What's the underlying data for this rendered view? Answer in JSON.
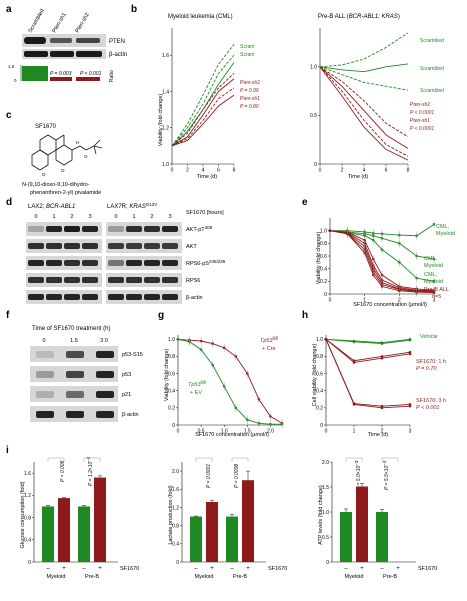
{
  "panel_letters": [
    "a",
    "b",
    "c",
    "d",
    "e",
    "f",
    "g",
    "h",
    "i"
  ],
  "colors": {
    "green": "#1f8a23",
    "red": "#8e1b1b",
    "dark": "#222222",
    "band": "#1a1a1a",
    "blot_bg": "#d7d7d7"
  },
  "panel_a": {
    "lanes": [
      "Scrambled",
      "Pten-sh1",
      "Pten-sh2"
    ],
    "proteins": [
      "PTEN",
      "β-actin"
    ],
    "ratio_label": "Ratio",
    "ratio_ticks": [
      "0",
      "1.0"
    ],
    "p1": "P = 0.003",
    "p2": "P < 0.001",
    "chart_data": {
      "type": "bar",
      "categories": [
        "Scrambled",
        "Pten-sh1",
        "Pten-sh2"
      ],
      "values": [
        1.0,
        0.3,
        0.3
      ],
      "ylim": [
        0,
        1.0
      ]
    }
  },
  "panel_b": {
    "left": {
      "title": "Myeloid leukemia (CML)",
      "xlabel": "Time (d)",
      "ylabel": "Viability (fold change)",
      "labels": [
        "Scram",
        "Scram",
        "Pten-sh2",
        "P = 0.99",
        "Pten-sh1",
        "P = 0.80"
      ],
      "chart_data": {
        "type": "line",
        "x": [
          0,
          2,
          4,
          6,
          8
        ],
        "xticks": [
          "0",
          "2",
          "4",
          "6",
          "8"
        ],
        "yticks": [
          "1.0",
          "1.2",
          "1.4",
          "1.6"
        ],
        "ylim": [
          1.0,
          1.75
        ],
        "series": [
          {
            "name": "Scram",
            "color": "#1f8a23",
            "dash": true,
            "values": [
              1.1,
              1.22,
              1.38,
              1.55,
              1.66
            ]
          },
          {
            "name": "Scram",
            "color": "#1f8a23",
            "dash": true,
            "values": [
              1.1,
              1.2,
              1.33,
              1.5,
              1.6
            ]
          },
          {
            "name": "Scram",
            "color": "#1f8a23",
            "dash": false,
            "values": [
              1.1,
              1.18,
              1.3,
              1.44,
              1.56
            ]
          },
          {
            "name": "Pten-sh2",
            "color": "#8e1b1b",
            "dash": true,
            "values": [
              1.1,
              1.17,
              1.3,
              1.42,
              1.5
            ]
          },
          {
            "name": "Pten-sh2",
            "color": "#8e1b1b",
            "dash": false,
            "values": [
              1.1,
              1.15,
              1.27,
              1.4,
              1.47
            ]
          },
          {
            "name": "Pten-sh1",
            "color": "#8e1b1b",
            "dash": true,
            "values": [
              1.1,
              1.14,
              1.24,
              1.36,
              1.42
            ]
          },
          {
            "name": "Pten-sh1",
            "color": "#8e1b1b",
            "dash": false,
            "values": [
              1.1,
              1.13,
              1.22,
              1.32,
              1.38
            ]
          }
        ]
      }
    },
    "right": {
      "title_pre": "Pre-B ALL (",
      "title_genes": "BCR-ABL1; KRAS",
      "title_post": ")",
      "xlabel": "Time (d)",
      "labels": [
        "Scrambled",
        "Scrambled",
        "Scrambled",
        "Pten-sh2",
        "P < 0.0001",
        "Pten-sh1",
        "P < 0.0001"
      ],
      "chart_data": {
        "type": "line",
        "x": [
          0,
          2,
          4,
          6,
          8
        ],
        "xticks": [
          "0",
          "2",
          "4",
          "6",
          "8"
        ],
        "yticks": [
          "0",
          "0.5",
          "1.0"
        ],
        "ylim": [
          0,
          1.4
        ],
        "series": [
          {
            "name": "Scrambled",
            "color": "#1f8a23",
            "dash": true,
            "values": [
              1.0,
              1.02,
              1.08,
              1.2,
              1.35
            ]
          },
          {
            "name": "Scrambled",
            "color": "#1f8a23",
            "dash": false,
            "values": [
              1.0,
              0.97,
              0.95,
              1.0,
              1.03
            ]
          },
          {
            "name": "Scrambled",
            "color": "#1f8a23",
            "dash": true,
            "values": [
              1.0,
              0.92,
              0.84,
              0.8,
              0.76
            ]
          },
          {
            "name": "Pten-sh2",
            "color": "#8e1b1b",
            "dash": true,
            "values": [
              1.0,
              0.85,
              0.65,
              0.42,
              0.28
            ]
          },
          {
            "name": "Pten-sh2",
            "color": "#8e1b1b",
            "dash": false,
            "values": [
              1.0,
              0.8,
              0.55,
              0.3,
              0.16
            ]
          },
          {
            "name": "Pten-sh1",
            "color": "#8e1b1b",
            "dash": true,
            "values": [
              1.0,
              0.75,
              0.45,
              0.2,
              0.08
            ]
          },
          {
            "name": "Pten-sh1",
            "color": "#8e1b1b",
            "dash": false,
            "values": [
              1.0,
              0.7,
              0.38,
              0.15,
              0.04
            ]
          }
        ]
      }
    }
  },
  "panel_c": {
    "compound": "SF1670",
    "name_line1": "N-(9,10-dioxo-9,10-dihydro-",
    "name_line2": "phenanthren-2-yl) pivalamide"
  },
  "panel_d": {
    "cell1_name": "LAX2; ",
    "cell1_gene": "BCR-ABL1",
    "cell2_name": "LAX7R; ",
    "cell2_gene": "KRAS",
    "cell2_sup": "G12V",
    "treatment_label": "SF1670 [hours]",
    "time_labels": [
      "0",
      "1",
      "2",
      "3",
      "0",
      "1",
      "2",
      "3"
    ],
    "proteins": [
      {
        "name": "AKT-pT",
        "sup": "308"
      },
      {
        "name": "AKT",
        "sup": ""
      },
      {
        "name": "RPS6-pS",
        "sup": "235/236"
      },
      {
        "name": "RPS6",
        "sup": ""
      },
      {
        "name": "β-actin",
        "sup": ""
      }
    ]
  },
  "panel_e": {
    "xlabel": "SF1670 concentration (μmol/l)",
    "ylabel": "Viability (fold change)",
    "labels": [
      "CML,",
      "Myeloid",
      "CML,",
      "Myeloid",
      "CML,",
      "Myeloid",
      "Pre-B ALL",
      "n=5"
    ],
    "chart_data": {
      "type": "line",
      "x": [
        0,
        0.5,
        1,
        1.25,
        1.5,
        2,
        2.5,
        3
      ],
      "xticks": [
        "0",
        "1",
        "2",
        "3"
      ],
      "yticks": [
        "0",
        "0.2",
        "0.4",
        "0.6",
        "0.8",
        "1.0"
      ],
      "ylim": [
        0,
        1.2
      ],
      "series": [
        {
          "name": "CML, Myeloid",
          "color": "#1f8a23",
          "values": [
            1.0,
            1.0,
            0.98,
            0.96,
            0.95,
            0.93,
            0.92,
            1.1
          ]
        },
        {
          "name": "CML, Myeloid",
          "color": "#1f8a23",
          "values": [
            1.0,
            0.98,
            0.95,
            0.92,
            0.88,
            0.8,
            0.6,
            0.55
          ]
        },
        {
          "name": "CML, Myeloid",
          "color": "#1f8a23",
          "values": [
            1.0,
            0.97,
            0.92,
            0.85,
            0.7,
            0.5,
            0.25,
            0.2
          ]
        },
        {
          "name": "Pre-B ALL",
          "color": "#8e1b1b",
          "values": [
            1.0,
            0.98,
            0.85,
            0.55,
            0.3,
            0.12,
            0.08,
            0.06
          ]
        },
        {
          "name": "Pre-B ALL",
          "color": "#8e1b1b",
          "values": [
            1.0,
            0.97,
            0.8,
            0.45,
            0.22,
            0.1,
            0.06,
            0.05
          ]
        },
        {
          "name": "Pre-B ALL",
          "color": "#8e1b1b",
          "values": [
            1.0,
            0.96,
            0.75,
            0.4,
            0.18,
            0.08,
            0.05,
            0.04
          ]
        },
        {
          "name": "Pre-B ALL",
          "color": "#8e1b1b",
          "values": [
            1.0,
            0.95,
            0.7,
            0.35,
            0.15,
            0.07,
            0.04,
            0.03
          ]
        },
        {
          "name": "Pre-B ALL",
          "color": "#8e1b1b",
          "values": [
            1.0,
            0.95,
            0.65,
            0.3,
            0.12,
            0.05,
            0.03,
            0.02
          ]
        }
      ]
    }
  },
  "panel_f": {
    "title": "Time of SF1670 treatment (h)",
    "time_labels": [
      "0",
      "1.5",
      "3.0"
    ],
    "proteins": [
      "p53-S15",
      "p53",
      "p21",
      "β-actin"
    ]
  },
  "panel_g": {
    "xlabel": "SF1670 concentration (μmol/l)",
    "ylabel": "Viability (fold change)",
    "label_red_gene": "Tp53",
    "label_red_sup": "fl/fl",
    "label_red_sub": "+ Cre",
    "label_green_gene": "Tp53",
    "label_green_sup": "fl/fl",
    "label_green_sub": "+ EV",
    "chart_data": {
      "type": "line",
      "x": [
        0,
        0.25,
        0.5,
        0.75,
        1,
        1.25,
        1.5,
        1.75,
        2,
        2.25
      ],
      "xticks": [
        "0",
        "0.5",
        "1.0",
        "1.5",
        "2.0"
      ],
      "yticks": [
        "0",
        "0.2",
        "0.4",
        "0.6",
        "0.8",
        "1.0"
      ],
      "ylim": [
        0,
        1.05
      ],
      "series": [
        {
          "name": "Tp53 fl/fl + Cre",
          "color": "#8e1b1b",
          "values": [
            1.0,
            0.99,
            0.98,
            0.95,
            0.9,
            0.8,
            0.6,
            0.3,
            0.1,
            0.02
          ]
        },
        {
          "name": "Tp53 fl/fl + EV",
          "color": "#1f8a23",
          "values": [
            1.0,
            0.97,
            0.88,
            0.7,
            0.45,
            0.2,
            0.06,
            0.02,
            0.01,
            0.01
          ]
        }
      ]
    }
  },
  "panel_h": {
    "xlabel": "Time (d)",
    "ylabel": "Cell viability (fold change)",
    "labels": [
      "Vehicle",
      "SF1670; 1 h",
      "P = 0.70",
      "SF1670; 3 h",
      "P < 0.001"
    ],
    "chart_data": {
      "type": "line",
      "x": [
        0,
        1,
        2,
        3
      ],
      "xticks": [
        "0",
        "1",
        "2",
        "3"
      ],
      "yticks": [
        "0",
        "0.2",
        "0.4",
        "0.6",
        "0.8",
        "1.0"
      ],
      "ylim": [
        0,
        1.05
      ],
      "series": [
        {
          "name": "Vehicle",
          "color": "#1f8a23",
          "values": [
            1.0,
            0.98,
            0.96,
            1.0
          ]
        },
        {
          "name": "Vehicle",
          "color": "#1f8a23",
          "values": [
            1.0,
            0.97,
            0.95,
            0.99
          ]
        },
        {
          "name": "SF1670; 1 h",
          "color": "#8e1b1b",
          "values": [
            1.0,
            0.75,
            0.8,
            0.85
          ]
        },
        {
          "name": "SF1670; 1 h",
          "color": "#8e1b1b",
          "values": [
            1.0,
            0.73,
            0.78,
            0.83
          ]
        },
        {
          "name": "SF1670; 3 h",
          "color": "#8e1b1b",
          "values": [
            1.0,
            0.25,
            0.22,
            0.24
          ]
        },
        {
          "name": "SF1670; 3 h",
          "color": "#8e1b1b",
          "values": [
            1.0,
            0.24,
            0.2,
            0.22
          ]
        }
      ]
    }
  },
  "panel_i": {
    "treatment_label": "SF1670",
    "signs": [
      "–",
      "+",
      "–",
      "+"
    ],
    "groups": [
      "Myeloid",
      "Pre-B"
    ],
    "charts": [
      {
        "ylabel": "Glucose consumption (fold)",
        "p1": "P = 0.008",
        "p2_pre": "P = 1.2×10",
        "p2_exp": "–5",
        "chart_data": {
          "type": "bar",
          "categories": [
            "Myeloid –",
            "Myeloid +",
            "Pre-B –",
            "Pre-B +"
          ],
          "values": [
            1.0,
            1.15,
            1.0,
            1.52
          ],
          "errors": [
            0.02,
            0.01,
            0.02,
            0.03
          ],
          "yticks": [
            "0",
            "0.4",
            "0.8",
            "1.2",
            "1.6"
          ],
          "ylim": [
            0,
            1.8
          ]
        }
      },
      {
        "ylabel": "Lactate production (fold)",
        "p1": "P = 0.0001",
        "p2_pre": "P = 0.0008",
        "p2_exp": "",
        "chart_data": {
          "type": "bar",
          "categories": [
            "Myeloid –",
            "Myeloid +",
            "Pre-B –",
            "Pre-B +"
          ],
          "values": [
            1.0,
            1.32,
            1.0,
            1.8
          ],
          "errors": [
            0.01,
            0.04,
            0.05,
            0.2
          ],
          "yticks": [
            "0",
            "0.4",
            "0.8",
            "1.2",
            "1.6",
            "2.0"
          ],
          "ylim": [
            0,
            2.2
          ]
        }
      },
      {
        "ylabel": "ATP levels (fold change)",
        "p1_pre": "P = 5.0×10",
        "p1_exp": "–3",
        "p2_pre": "P = 5.5×10",
        "p2_exp": "–3",
        "chart_data": {
          "type": "bar",
          "categories": [
            "Myeloid –",
            "Myeloid +",
            "Pre-B –",
            "Pre-B +"
          ],
          "values": [
            1.0,
            1.51,
            1.0,
            0
          ],
          "errors": [
            0.06,
            0.06,
            0.05,
            0
          ],
          "yticks": [
            "0",
            "0.5",
            "1.0",
            "1.5",
            "2.0"
          ],
          "ylim": [
            0,
            2.0
          ]
        }
      }
    ]
  }
}
